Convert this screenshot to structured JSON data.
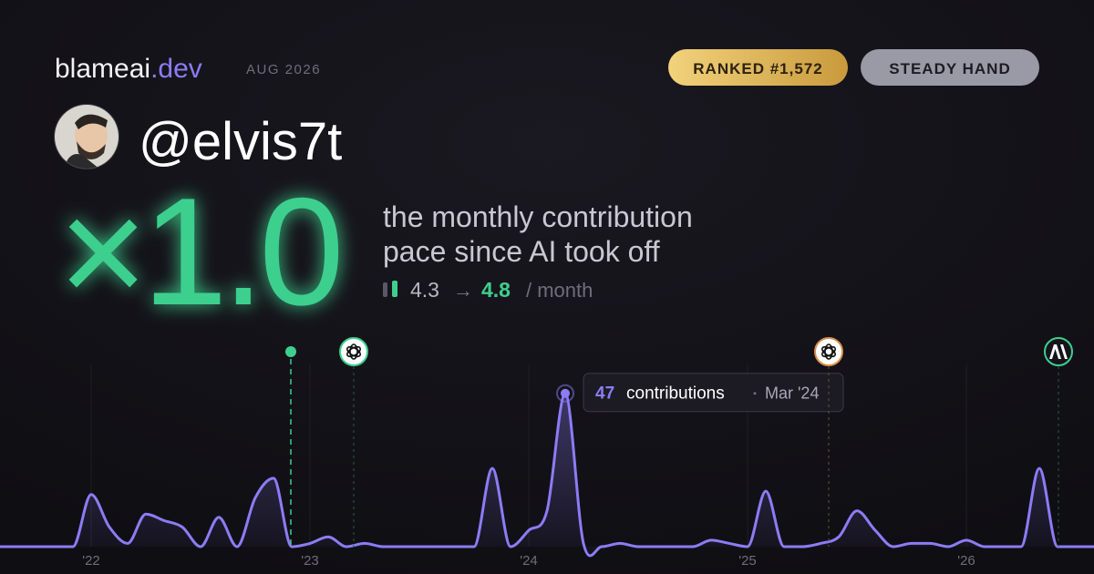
{
  "header": {
    "brand": "blameai",
    "brand_suffix": ".dev",
    "date": "AUG 2026",
    "rank_badge": "RANKED #1,572",
    "style_badge": "STEADY HAND"
  },
  "profile": {
    "handle": "@elvis7t"
  },
  "stats": {
    "multiplier": "×1.0",
    "description_line1": "the monthly contribution",
    "description_line2": "pace since AI took off",
    "before": 4.3,
    "arrow": "→",
    "after": 4.8,
    "unit": "/ month"
  },
  "chart_data": {
    "type": "area",
    "categories": [
      null,
      null,
      null,
      null,
      null,
      "'22",
      null,
      null,
      null,
      null,
      null,
      null,
      null,
      null,
      null,
      null,
      null,
      "'23",
      null,
      null,
      null,
      null,
      null,
      null,
      null,
      null,
      null,
      null,
      null,
      "'24",
      null,
      null,
      null,
      null,
      null,
      null,
      null,
      null,
      null,
      null,
      null,
      "'25",
      null,
      null,
      null,
      null,
      null,
      null,
      null,
      null,
      null,
      null,
      null,
      "'26",
      null,
      null,
      null,
      null,
      null,
      null,
      null
    ],
    "series": [
      {
        "color": "#8b7cf6",
        "values": [
          0,
          0,
          0,
          0,
          0,
          16,
          6,
          1,
          10,
          8,
          6,
          0,
          9,
          0,
          15,
          21,
          0,
          1,
          3,
          0,
          1,
          0,
          0,
          0,
          0,
          0,
          0,
          24,
          0,
          5,
          11,
          47,
          1,
          0,
          1,
          0,
          0,
          0,
          0,
          2,
          1,
          0,
          17,
          0,
          0,
          1,
          3,
          11,
          5,
          0,
          1,
          1,
          0,
          2,
          0,
          0,
          0,
          24,
          0,
          0,
          0
        ]
      }
    ],
    "ylim": [
      0,
      50
    ],
    "tooltip": {
      "label": "contributions",
      "date": "Mar '24"
    }
  }
}
